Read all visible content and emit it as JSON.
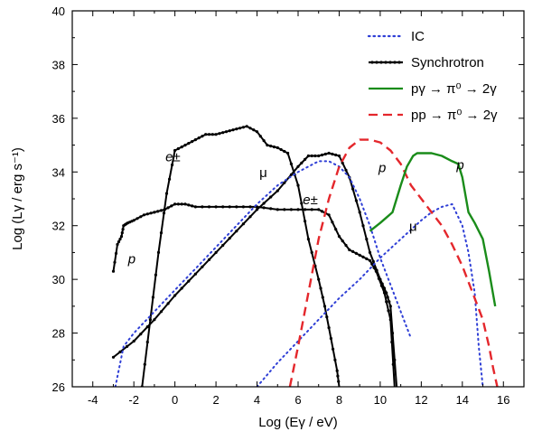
{
  "chart_data": {
    "type": "line",
    "title": "",
    "xlabel": "Log (Eγ / eV)",
    "ylabel": "Log (Lγ / erg s⁻¹)",
    "xlim": [
      -5,
      17
    ],
    "ylim": [
      26,
      40
    ],
    "xticks": [
      -4,
      -2,
      0,
      2,
      4,
      6,
      8,
      10,
      12,
      14,
      16
    ],
    "yticks": [
      26,
      28,
      30,
      32,
      34,
      36,
      38,
      40
    ],
    "legend_position": "top-right",
    "legend": [
      {
        "label": "IC",
        "color": "#2f3fd6",
        "style": "dotted"
      },
      {
        "label": "Synchrotron",
        "color": "#000000",
        "style": "solid-markers"
      },
      {
        "label": "pγ → π⁰ → 2γ",
        "color": "#1a8c1a",
        "style": "solid"
      },
      {
        "label": "pp → π⁰ → 2γ",
        "color": "#e4272c",
        "style": "dashed"
      }
    ],
    "series": [
      {
        "name": "Synchrotron e±",
        "style": "sync",
        "x": [
          -1.6,
          -1.2,
          -0.8,
          -0.4,
          0.0,
          0.5,
          1.0,
          1.5,
          2.0,
          2.5,
          3.0,
          3.5,
          4.0,
          4.5,
          5.0,
          5.5,
          6.0,
          6.5,
          7.0,
          7.3,
          7.6,
          7.9,
          8.0
        ],
        "y": [
          26.0,
          28.5,
          31.0,
          33.2,
          34.8,
          35.0,
          35.2,
          35.4,
          35.4,
          35.5,
          35.6,
          35.7,
          35.5,
          35.0,
          34.9,
          34.7,
          33.5,
          31.5,
          30.0,
          29.0,
          27.8,
          26.6,
          26.0
        ]
      },
      {
        "name": "Synchrotron p",
        "style": "sync",
        "x": [
          -3.0,
          -2.8,
          -2.6,
          -2.5,
          -2.3,
          -2.0,
          -1.5,
          -1.0,
          -0.5,
          0.0,
          0.5,
          1.0,
          2.0,
          3.0,
          4.0,
          5.0,
          6.0,
          7.0,
          7.5,
          8.0,
          8.5,
          9.0,
          9.5,
          9.8,
          10.2,
          10.5,
          10.7
        ],
        "y": [
          30.3,
          31.3,
          31.6,
          32.0,
          32.1,
          32.2,
          32.4,
          32.5,
          32.6,
          32.8,
          32.8,
          32.7,
          32.7,
          32.7,
          32.7,
          32.6,
          32.6,
          32.6,
          32.4,
          31.6,
          31.1,
          30.9,
          30.7,
          30.3,
          29.5,
          28.5,
          26.0
        ]
      },
      {
        "name": "Synchrotron μ",
        "style": "sync",
        "x": [
          -3.0,
          -2.0,
          -1.0,
          0.0,
          1.0,
          2.0,
          3.0,
          4.0,
          5.0,
          6.0,
          6.5,
          7.0,
          7.5,
          8.0,
          8.5,
          9.0,
          9.5,
          10.0,
          10.3,
          10.5,
          10.8
        ],
        "y": [
          27.1,
          27.7,
          28.5,
          29.4,
          30.2,
          31.0,
          31.8,
          32.6,
          33.3,
          34.2,
          34.6,
          34.6,
          34.7,
          34.6,
          33.8,
          32.5,
          31.0,
          30.0,
          29.5,
          29.0,
          26.0
        ]
      },
      {
        "name": "IC low",
        "style": "ic",
        "x": [
          -2.9,
          -2.5,
          -2.0,
          -1.0,
          0.0,
          1.0,
          2.0,
          3.0,
          4.0,
          5.0,
          6.0,
          7.0,
          7.5,
          8.0,
          8.5,
          9.0,
          9.5,
          10.0,
          10.5,
          11.0,
          11.5
        ],
        "y": [
          26.0,
          27.5,
          28.0,
          28.8,
          29.6,
          30.4,
          31.2,
          32.0,
          32.8,
          33.5,
          34.0,
          34.4,
          34.4,
          34.2,
          33.8,
          33.0,
          32.0,
          30.8,
          29.8,
          28.8,
          27.8
        ]
      },
      {
        "name": "IC high",
        "style": "ic",
        "x": [
          4.0,
          5.0,
          6.0,
          7.0,
          8.0,
          9.0,
          10.0,
          11.0,
          12.0,
          12.5,
          13.0,
          13.5,
          14.0,
          14.3,
          14.6,
          14.8,
          15.0
        ],
        "y": [
          26.0,
          26.9,
          27.7,
          28.5,
          29.3,
          30.0,
          30.8,
          31.5,
          32.2,
          32.5,
          32.7,
          32.8,
          32.0,
          31.0,
          29.5,
          27.5,
          26.0
        ]
      },
      {
        "name": "pp → π⁰ → 2γ",
        "style": "pp",
        "x": [
          5.6,
          6.0,
          6.5,
          7.0,
          7.5,
          8.0,
          8.5,
          9.0,
          9.5,
          10.0,
          10.5,
          11.0,
          11.5,
          12.0,
          12.5,
          13.0,
          13.5,
          14.0,
          14.5,
          15.0,
          15.3,
          15.5,
          15.7
        ],
        "y": [
          26.0,
          27.5,
          29.5,
          31.5,
          33.0,
          34.2,
          34.9,
          35.2,
          35.2,
          35.1,
          34.8,
          34.3,
          33.5,
          33.0,
          32.5,
          32.0,
          31.3,
          30.5,
          29.5,
          28.5,
          27.5,
          26.7,
          26.0
        ]
      },
      {
        "name": "pγ → π⁰ → 2γ",
        "style": "pg",
        "x": [
          9.5,
          10.0,
          10.3,
          10.6,
          11.0,
          11.3,
          11.6,
          11.8,
          12.0,
          12.5,
          13.0,
          13.5,
          13.8,
          14.0,
          14.3,
          14.6,
          15.0,
          15.3,
          15.6
        ],
        "y": [
          31.8,
          32.1,
          32.3,
          32.5,
          33.5,
          34.2,
          34.6,
          34.7,
          34.7,
          34.7,
          34.6,
          34.4,
          34.3,
          33.8,
          32.5,
          32.1,
          31.5,
          30.3,
          29.0
        ]
      }
    ],
    "annotations": [
      {
        "text": "e±",
        "x": -0.1,
        "y": 34.4,
        "italic": true
      },
      {
        "text": "p",
        "x": -2.1,
        "y": 30.6,
        "italic": true
      },
      {
        "text": "μ",
        "x": 4.3,
        "y": 33.8,
        "italic": false
      },
      {
        "text": "e±",
        "x": 6.6,
        "y": 32.8,
        "italic": true
      },
      {
        "text": "p",
        "x": 10.1,
        "y": 34.0,
        "italic": true
      },
      {
        "text": "p",
        "x": 13.9,
        "y": 34.1,
        "italic": true
      },
      {
        "text": "μ",
        "x": 11.6,
        "y": 31.8,
        "italic": false
      }
    ],
    "colors": {
      "sync": "#000000",
      "ic": "#2f3fd6",
      "pp": "#e4272c",
      "pg": "#1a8c1a"
    }
  }
}
